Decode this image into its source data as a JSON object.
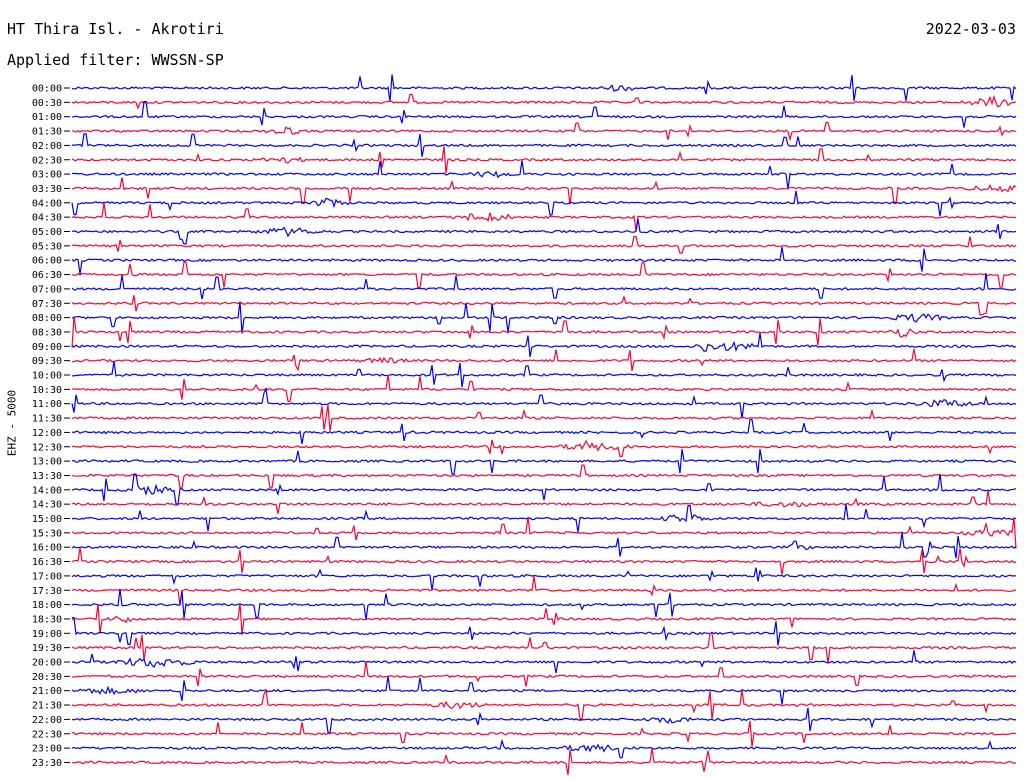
{
  "header": {
    "station": "HT Thira Isl. - Akrotiri",
    "date": "2022-03-03",
    "filter": "Applied filter: WWSSN-SP"
  },
  "chart_data": {
    "type": "line",
    "title": "HT Thira Isl. - Akrotiri",
    "ylabel": "EHZ - 5000",
    "row_labels": [
      "00:00",
      "00:30",
      "01:00",
      "01:30",
      "02:00",
      "02:30",
      "03:00",
      "03:30",
      "04:00",
      "04:30",
      "05:00",
      "05:30",
      "06:00",
      "06:30",
      "07:00",
      "07:30",
      "08:00",
      "08:30",
      "09:00",
      "09:30",
      "10:00",
      "10:30",
      "11:00",
      "11:30",
      "12:00",
      "12:30",
      "13:00",
      "13:30",
      "14:00",
      "14:30",
      "15:00",
      "15:30",
      "16:00",
      "16:30",
      "17:00",
      "17:30",
      "18:00",
      "18:30",
      "19:00",
      "19:30",
      "20:00",
      "20:30",
      "21:00",
      "21:30",
      "22:00",
      "22:30",
      "23:00",
      "23:30"
    ],
    "colors": [
      "#0000ff",
      "#ff0033"
    ],
    "grid": false,
    "legend": "none"
  }
}
